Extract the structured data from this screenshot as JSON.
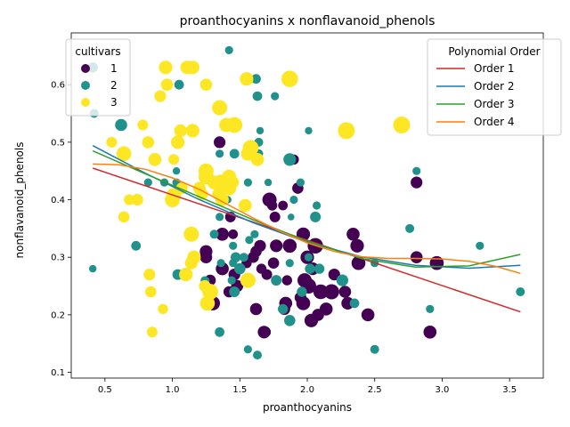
{
  "chart_data": {
    "type": "scatter",
    "title": "proanthocyanins x nonflavanoid_phenols",
    "xlabel": "proanthocyanins",
    "ylabel": "nonflavanoid_phenols",
    "xlim": [
      0.25,
      3.75
    ],
    "ylim": [
      0.09,
      0.69
    ],
    "xticks": [
      "0.5",
      "1.0",
      "1.5",
      "2.0",
      "2.5",
      "3.0",
      "3.5"
    ],
    "yticks": [
      "0.1",
      "0.2",
      "0.3",
      "0.4",
      "0.5",
      "0.6"
    ],
    "grid": false,
    "cultivar_legend": {
      "title": "cultivars",
      "placement": "upper-left",
      "entries": [
        {
          "label": "1",
          "color": "#440154"
        },
        {
          "label": "2",
          "color": "#21918c"
        },
        {
          "label": "3",
          "color": "#fde725"
        }
      ]
    },
    "fit_legend": {
      "title": "Polynomial Order",
      "placement": "upper-right",
      "entries": [
        {
          "label": "Order 1",
          "color": "#d62728"
        },
        {
          "label": "Order 2",
          "color": "#1f77b4"
        },
        {
          "label": "Order 3",
          "color": "#2ca02c"
        },
        {
          "label": "Order 4",
          "color": "#ff7f0e"
        }
      ]
    },
    "fits": [
      {
        "name": "Order 1",
        "color": "#d62728",
        "x": [
          0.41,
          3.58
        ],
        "y": [
          0.455,
          0.205
        ]
      },
      {
        "name": "Order 2",
        "color": "#1f77b4",
        "x": [
          0.41,
          0.8,
          1.2,
          1.6,
          2.0,
          2.4,
          2.8,
          3.2,
          3.58
        ],
        "y": [
          0.494,
          0.446,
          0.4,
          0.36,
          0.326,
          0.301,
          0.286,
          0.281,
          0.286
        ]
      },
      {
        "name": "Order 3",
        "color": "#2ca02c",
        "x": [
          0.41,
          0.8,
          1.2,
          1.6,
          2.0,
          2.4,
          2.8,
          3.2,
          3.58
        ],
        "y": [
          0.485,
          0.445,
          0.405,
          0.365,
          0.328,
          0.298,
          0.283,
          0.285,
          0.305
        ]
      },
      {
        "name": "Order 4",
        "color": "#ff7f0e",
        "x": [
          0.41,
          0.6,
          0.8,
          1.0,
          1.2,
          1.4,
          1.6,
          1.8,
          2.0,
          2.2,
          2.4,
          2.6,
          2.8,
          3.0,
          3.2,
          3.4,
          3.58
        ],
        "y": [
          0.462,
          0.461,
          0.453,
          0.438,
          0.418,
          0.393,
          0.368,
          0.345,
          0.325,
          0.31,
          0.301,
          0.298,
          0.298,
          0.297,
          0.293,
          0.284,
          0.272
        ]
      }
    ],
    "series": [
      {
        "name": "1",
        "color": "#440154",
        "x": [
          1.35,
          1.37,
          1.43,
          1.45,
          1.6,
          1.62,
          1.68,
          1.72,
          1.74,
          1.76,
          1.82,
          1.87,
          1.9,
          1.93,
          1.97,
          2.0,
          2.04,
          2.06,
          2.1,
          2.14,
          2.18,
          2.2,
          2.28,
          2.3,
          2.34,
          2.37,
          2.38,
          2.45,
          2.81,
          2.81,
          2.96,
          2.91,
          1.25,
          1.25,
          1.28,
          1.3,
          1.37,
          1.46,
          1.55,
          1.57,
          1.66,
          1.7,
          1.77,
          1.84,
          1.95,
          1.98,
          2.01,
          1.48,
          1.62,
          1.65,
          1.69,
          1.75,
          1.85,
          2.03,
          2.08,
          1.97,
          1.83,
          1.42
        ],
        "y": [
          0.5,
          0.34,
          0.37,
          0.34,
          0.3,
          0.21,
          0.17,
          0.4,
          0.39,
          0.37,
          0.39,
          0.32,
          0.47,
          0.42,
          0.34,
          0.3,
          0.28,
          0.32,
          0.24,
          0.21,
          0.24,
          0.27,
          0.24,
          0.22,
          0.34,
          0.32,
          0.29,
          0.2,
          0.3,
          0.43,
          0.29,
          0.17,
          0.31,
          0.3,
          0.26,
          0.22,
          0.28,
          0.27,
          0.29,
          0.26,
          0.28,
          0.27,
          0.32,
          0.22,
          0.23,
          0.26,
          0.25,
          0.25,
          0.31,
          0.32,
          0.17,
          0.29,
          0.26,
          0.19,
          0.2,
          0.22,
          0.21,
          0.24
        ],
        "size": [
          120,
          150,
          100,
          80,
          110,
          130,
          140,
          180,
          90,
          100,
          80,
          170,
          90,
          110,
          160,
          160,
          140,
          210,
          190,
          150,
          200,
          120,
          130,
          140,
          150,
          160,
          170,
          150,
          130,
          120,
          170,
          150,
          140,
          130,
          110,
          180,
          150,
          120,
          90,
          110,
          90,
          100,
          140,
          150,
          120,
          180,
          200,
          130,
          110,
          120,
          100,
          110,
          90,
          160,
          130,
          170,
          120,
          110
        ]
      },
      {
        "name": "2",
        "color": "#21918c",
        "x": [
          0.41,
          0.41,
          0.42,
          0.62,
          0.73,
          0.82,
          0.94,
          1.03,
          1.03,
          1.04,
          1.05,
          1.25,
          1.31,
          1.35,
          1.35,
          1.35,
          1.35,
          1.36,
          1.42,
          1.43,
          1.46,
          1.46,
          1.47,
          1.5,
          1.53,
          1.56,
          1.56,
          1.57,
          1.61,
          1.62,
          1.63,
          1.64,
          1.64,
          1.65,
          1.71,
          1.76,
          1.77,
          1.82,
          1.87,
          1.87,
          1.88,
          1.9,
          1.95,
          1.96,
          2.01,
          2.01,
          2.02,
          2.06,
          2.07,
          2.09,
          2.26,
          2.35,
          2.5,
          2.5,
          2.76,
          2.81,
          2.91,
          3.28,
          3.58,
          1.63,
          1.41,
          1.4,
          1.87,
          1.44,
          1.45,
          1.24,
          1.45
        ],
        "y": [
          0.63,
          0.28,
          0.55,
          0.53,
          0.32,
          0.43,
          0.43,
          0.45,
          0.43,
          0.27,
          0.6,
          0.26,
          0.34,
          0.37,
          0.4,
          0.48,
          0.17,
          0.29,
          0.66,
          0.43,
          0.48,
          0.24,
          0.3,
          0.28,
          0.3,
          0.43,
          0.14,
          0.33,
          0.34,
          0.61,
          0.58,
          0.5,
          0.48,
          0.52,
          0.43,
          0.58,
          0.26,
          0.21,
          0.47,
          0.19,
          0.37,
          0.4,
          0.43,
          0.24,
          0.52,
          0.3,
          0.28,
          0.37,
          0.39,
          0.28,
          0.26,
          0.22,
          0.29,
          0.14,
          0.35,
          0.45,
          0.21,
          0.32,
          0.24,
          0.13,
          0.4,
          0.43,
          0.29,
          0.26,
          0.32,
          0.26,
          0.29
        ],
        "size": [
          90,
          50,
          70,
          130,
          80,
          60,
          60,
          50,
          60,
          100,
          80,
          40,
          70,
          60,
          60,
          60,
          80,
          60,
          60,
          70,
          80,
          100,
          90,
          110,
          70,
          60,
          60,
          60,
          60,
          80,
          80,
          70,
          70,
          50,
          50,
          60,
          100,
          90,
          140,
          110,
          40,
          60,
          60,
          90,
          50,
          60,
          90,
          100,
          60,
          90,
          120,
          80,
          60,
          70,
          70,
          60,
          60,
          60,
          70,
          70,
          50,
          60,
          60,
          60,
          60,
          60,
          60
        ]
      },
      {
        "name": "3",
        "color": "#fde725",
        "x": [
          0.55,
          0.64,
          0.64,
          0.68,
          0.74,
          0.78,
          0.82,
          0.83,
          0.84,
          0.85,
          0.87,
          0.91,
          0.93,
          0.95,
          0.96,
          1.0,
          1.01,
          1.02,
          1.04,
          1.06,
          1.07,
          1.1,
          1.11,
          1.14,
          1.14,
          1.15,
          1.15,
          1.22,
          1.25,
          1.25,
          1.25,
          1.26,
          1.28,
          1.35,
          1.36,
          1.37,
          1.37,
          1.4,
          1.42,
          1.45,
          1.46,
          1.54,
          1.55,
          1.56,
          1.56,
          1.57,
          1.58,
          1.63,
          1.87,
          2.29,
          2.7,
          1.31,
          1.42,
          1.16,
          1.2,
          1.24,
          1.34,
          1.0
        ],
        "y": [
          0.5,
          0.37,
          0.48,
          0.4,
          0.4,
          0.53,
          0.5,
          0.27,
          0.24,
          0.17,
          0.47,
          0.58,
          0.21,
          0.63,
          0.6,
          0.4,
          0.47,
          0.41,
          0.5,
          0.52,
          0.42,
          0.27,
          0.63,
          0.34,
          0.29,
          0.52,
          0.63,
          0.41,
          0.6,
          0.44,
          0.45,
          0.22,
          0.24,
          0.56,
          0.43,
          0.4,
          0.43,
          0.53,
          0.42,
          0.43,
          0.53,
          0.39,
          0.61,
          0.26,
          0.48,
          0.26,
          0.49,
          0.47,
          0.61,
          0.52,
          0.53,
          0.43,
          0.44,
          0.3,
          0.42,
          0.25,
          0.41,
          0.41
        ],
        "size": [
          100,
          110,
          190,
          100,
          120,
          100,
          130,
          120,
          110,
          100,
          150,
          120,
          90,
          160,
          130,
          200,
          100,
          120,
          160,
          140,
          120,
          160,
          160,
          200,
          140,
          160,
          160,
          120,
          130,
          200,
          200,
          190,
          220,
          200,
          220,
          150,
          170,
          180,
          180,
          120,
          220,
          150,
          160,
          200,
          170,
          140,
          220,
          150,
          240,
          250,
          250,
          170,
          180,
          160,
          140,
          120,
          130,
          110
        ]
      }
    ]
  }
}
